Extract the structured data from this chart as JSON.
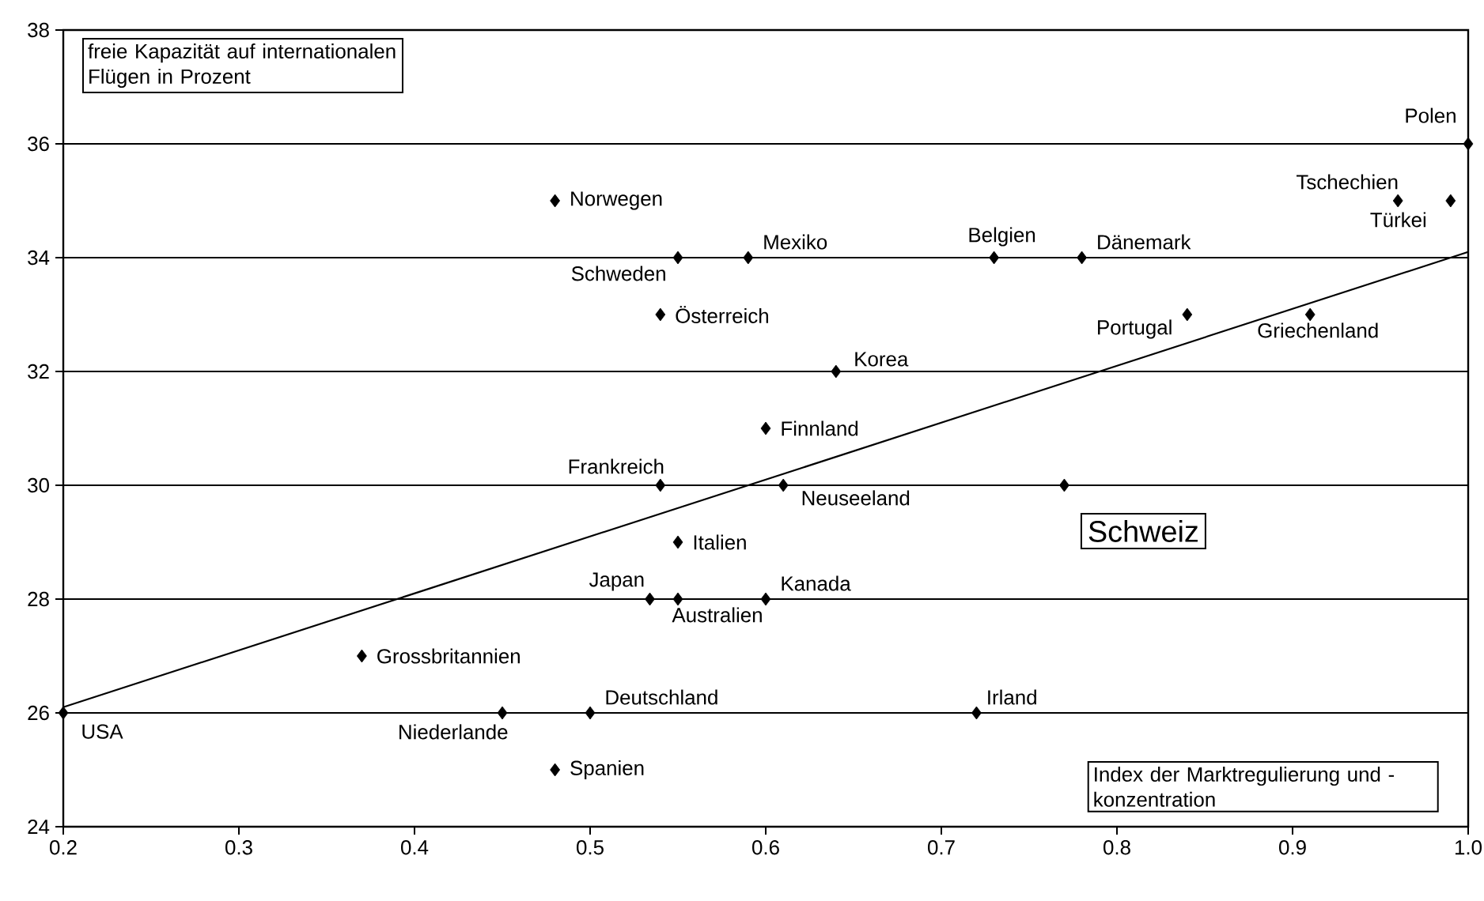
{
  "chart_data": {
    "type": "scatter",
    "xlabel": "Index der Marktregulierung und -konzentration",
    "ylabel": "freie Kapazität auf internationalen Flügen in Prozent",
    "xlim": [
      0.2,
      1.0
    ],
    "ylim": [
      24,
      38
    ],
    "xticks": [
      0.2,
      0.3,
      0.4,
      0.5,
      0.6,
      0.7,
      0.8,
      0.9,
      {
        "value": 1.0,
        "label": "1.0"
      }
    ],
    "yticks": [
      24,
      26,
      28,
      30,
      32,
      34,
      36,
      38
    ],
    "grid": "y",
    "series": [
      {
        "color": "#000000",
        "marker": "diamond",
        "x": [
          0.2,
          0.45,
          0.5,
          0.48,
          0.72,
          0.37,
          0.534,
          0.55,
          0.6,
          0.55,
          0.54,
          0.61,
          0.77,
          0.6,
          0.64,
          0.54,
          0.84,
          0.91,
          0.55,
          0.59,
          0.73,
          0.78,
          0.48,
          0.96,
          0.99,
          1.0
        ],
        "values": [
          26,
          26,
          26,
          25,
          26,
          27,
          28,
          28,
          28,
          29,
          30,
          30,
          30,
          31,
          32,
          33,
          33,
          33,
          34,
          34,
          34,
          34,
          35,
          35,
          35,
          36
        ]
      },
      {
        "type": "line",
        "color": "#000000",
        "marker": "none",
        "line_style": "solid",
        "x": [
          0.2,
          1.0
        ],
        "values": [
          26.1,
          34.1
        ]
      }
    ],
    "annotations": [
      {
        "text": "USA",
        "x": 0.2,
        "y": 26
      },
      {
        "text": "Niederlande",
        "x": 0.45,
        "y": 26
      },
      {
        "text": "Deutschland",
        "x": 0.5,
        "y": 26
      },
      {
        "text": "Spanien",
        "x": 0.48,
        "y": 25
      },
      {
        "text": "Irland",
        "x": 0.72,
        "y": 26
      },
      {
        "text": "Grossbritannien",
        "x": 0.37,
        "y": 27
      },
      {
        "text": "Japan",
        "x": 0.534,
        "y": 28
      },
      {
        "text": "Australien",
        "x": 0.55,
        "y": 28
      },
      {
        "text": "Kanada",
        "x": 0.6,
        "y": 28
      },
      {
        "text": "Italien",
        "x": 0.55,
        "y": 29
      },
      {
        "text": "Frankreich",
        "x": 0.54,
        "y": 30
      },
      {
        "text": "Neuseeland",
        "x": 0.61,
        "y": 30
      },
      {
        "text": "Schweiz",
        "x": 0.77,
        "y": 30
      },
      {
        "text": "Finnland",
        "x": 0.6,
        "y": 31
      },
      {
        "text": "Korea",
        "x": 0.64,
        "y": 32
      },
      {
        "text": "Österreich",
        "x": 0.54,
        "y": 33
      },
      {
        "text": "Portugal",
        "x": 0.84,
        "y": 33
      },
      {
        "text": "Griechenland",
        "x": 0.91,
        "y": 33
      },
      {
        "text": "Schweden",
        "x": 0.55,
        "y": 34
      },
      {
        "text": "Mexiko",
        "x": 0.59,
        "y": 34
      },
      {
        "text": "Belgien",
        "x": 0.73,
        "y": 34
      },
      {
        "text": "Dänemark",
        "x": 0.78,
        "y": 34
      },
      {
        "text": "Norwegen",
        "x": 0.48,
        "y": 35
      },
      {
        "text": "Tschechien",
        "x": 0.96,
        "y": 35
      },
      {
        "text": "Türkei",
        "x": 0.99,
        "y": 35
      },
      {
        "text": "Polen",
        "x": 1.0,
        "y": 36
      }
    ]
  }
}
